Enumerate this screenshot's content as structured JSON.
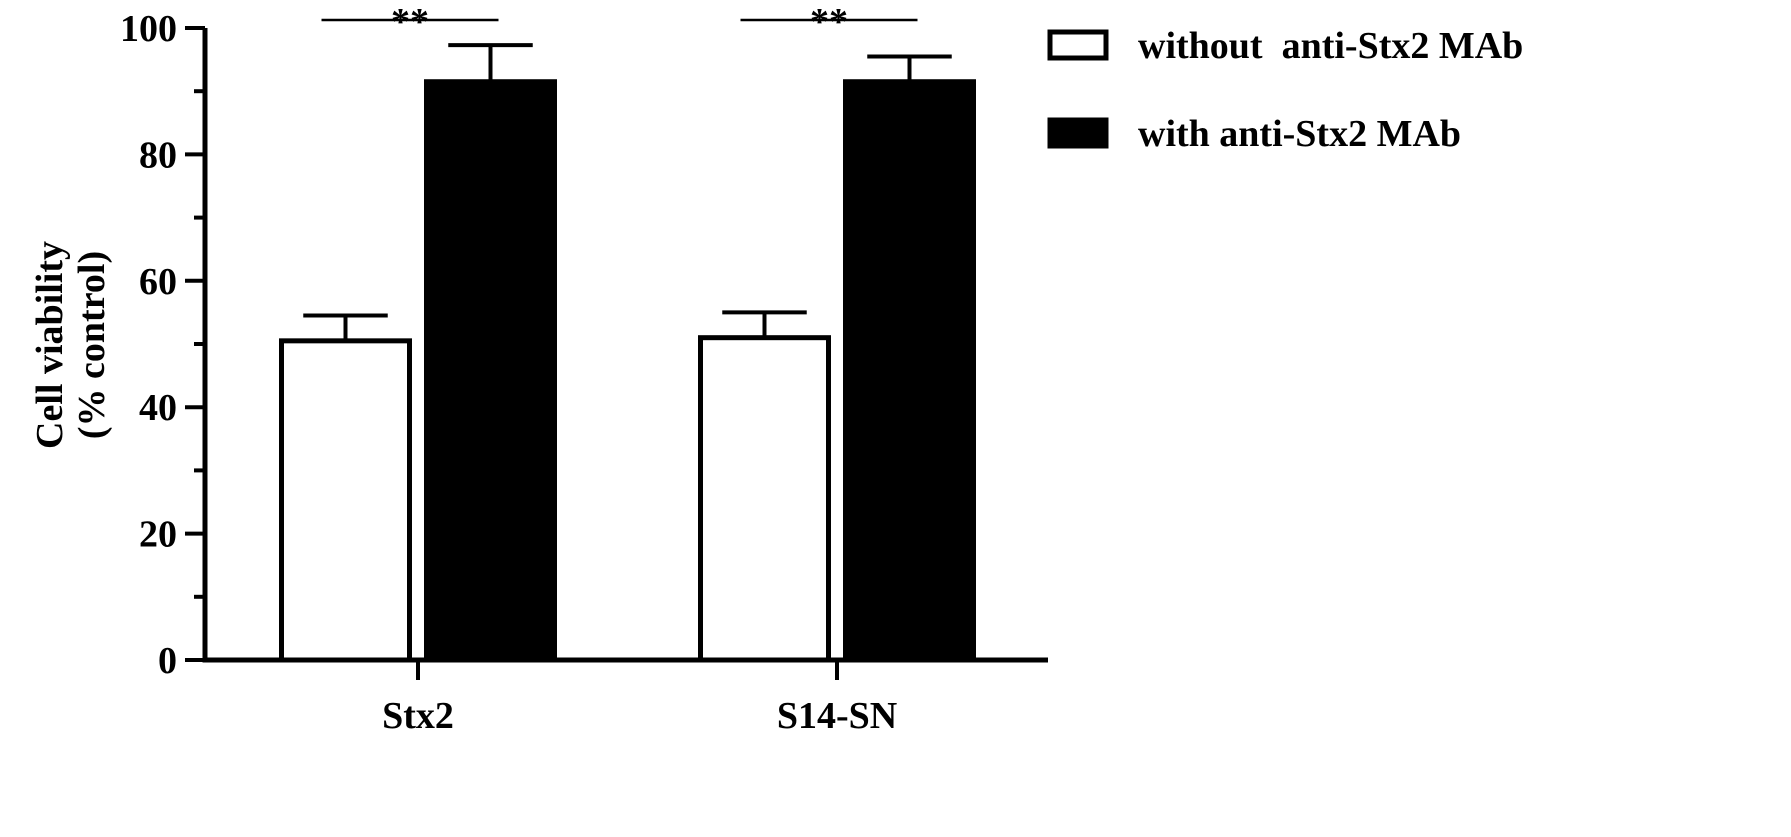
{
  "chart_data": {
    "type": "bar",
    "title": "",
    "xlabel": "",
    "ylabel_lines": [
      "Cell viability",
      "(% control)"
    ],
    "categories": [
      "Stx2",
      "S14-SN"
    ],
    "ylim": [
      0,
      100
    ],
    "yticks": [
      0,
      20,
      40,
      60,
      80,
      100
    ],
    "y_minor_step": 10,
    "grid": false,
    "legend_position": "top-right",
    "series": [
      {
        "name": "without  anti-Stx2 MAb",
        "values": [
          50.5,
          51.0
        ],
        "errors": [
          4.0,
          4.0
        ],
        "fill": "#ffffff",
        "stroke": "#000000"
      },
      {
        "name": "with anti-Stx2 MAb",
        "values": [
          91.5,
          91.5
        ],
        "errors": [
          5.8,
          4.0
        ],
        "fill": "#000000",
        "stroke": "#000000"
      }
    ],
    "significance": [
      {
        "category": "Stx2",
        "label": "**"
      },
      {
        "category": "S14-SN",
        "label": "**"
      }
    ]
  }
}
